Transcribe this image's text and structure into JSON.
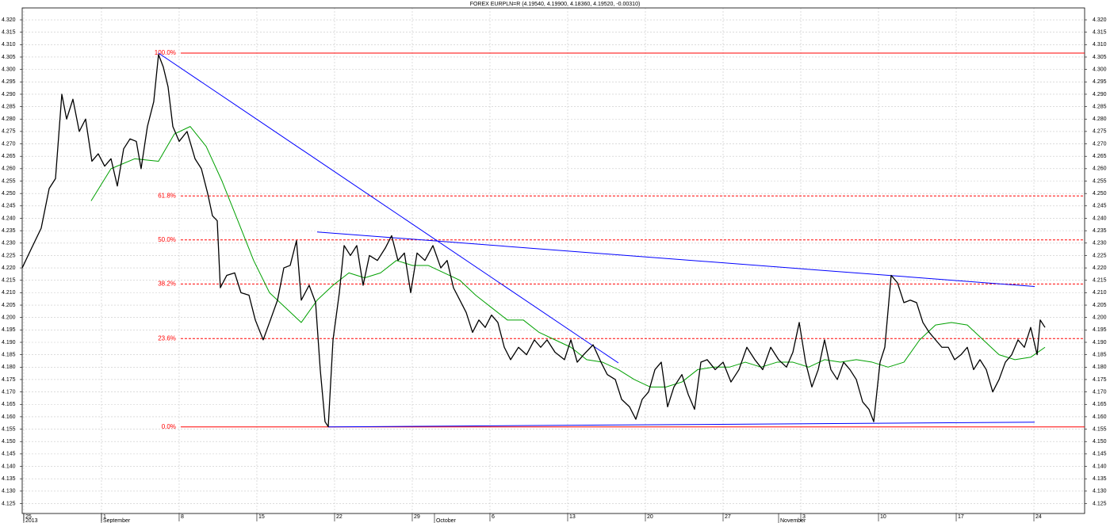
{
  "chart_data": {
    "type": "line",
    "title": "FOREX EURPLN=R (4.19540, 4.19900, 4.18360, 4.19520, -0.00310)",
    "xlim": [
      -0.14,
      95.57
    ],
    "ylim": [
      4.121,
      4.3248
    ],
    "grid": true,
    "xticks": [
      {
        "value": 0,
        "label": "25"
      },
      {
        "value": 7,
        "label": "1"
      },
      {
        "value": 14,
        "label": "8"
      },
      {
        "value": 21,
        "label": "15"
      },
      {
        "value": 28,
        "label": "22"
      },
      {
        "value": 35,
        "label": "29"
      },
      {
        "value": 42,
        "label": "6"
      },
      {
        "value": 49,
        "label": "13"
      },
      {
        "value": 56,
        "label": "20"
      },
      {
        "value": 63,
        "label": "27"
      },
      {
        "value": 70,
        "label": "3"
      },
      {
        "value": 77,
        "label": "10"
      },
      {
        "value": 84,
        "label": "17"
      },
      {
        "value": 91,
        "label": "24"
      }
    ],
    "month_labels": [
      {
        "value": 0,
        "label": "2013"
      },
      {
        "value": 7,
        "label": "September"
      },
      {
        "value": 37,
        "label": "October"
      },
      {
        "value": 68,
        "label": "November"
      }
    ],
    "yticks": [
      {
        "value": 4.125,
        "label": "4.125"
      },
      {
        "value": 4.13,
        "label": "4.130"
      },
      {
        "value": 4.135,
        "label": "4.135"
      },
      {
        "value": 4.14,
        "label": "4.140"
      },
      {
        "value": 4.145,
        "label": "4.145"
      },
      {
        "value": 4.15,
        "label": "4.150"
      },
      {
        "value": 4.155,
        "label": "4.155"
      },
      {
        "value": 4.16,
        "label": "4.160"
      },
      {
        "value": 4.165,
        "label": "4.165"
      },
      {
        "value": 4.17,
        "label": "4.170"
      },
      {
        "value": 4.175,
        "label": "4.175"
      },
      {
        "value": 4.18,
        "label": "4.180"
      },
      {
        "value": 4.185,
        "label": "4.185"
      },
      {
        "value": 4.19,
        "label": "4.190"
      },
      {
        "value": 4.195,
        "label": "4.195"
      },
      {
        "value": 4.2,
        "label": "4.200"
      },
      {
        "value": 4.205,
        "label": "4.205"
      },
      {
        "value": 4.21,
        "label": "4.210"
      },
      {
        "value": 4.215,
        "label": "4.215"
      },
      {
        "value": 4.22,
        "label": "4.220"
      },
      {
        "value": 4.225,
        "label": "4.225"
      },
      {
        "value": 4.23,
        "label": "4.230"
      },
      {
        "value": 4.235,
        "label": "4.235"
      },
      {
        "value": 4.24,
        "label": "4.240"
      },
      {
        "value": 4.245,
        "label": "4.245"
      },
      {
        "value": 4.25,
        "label": "4.250"
      },
      {
        "value": 4.255,
        "label": "4.255"
      },
      {
        "value": 4.26,
        "label": "4.260"
      },
      {
        "value": 4.265,
        "label": "4.265"
      },
      {
        "value": 4.27,
        "label": "4.270"
      },
      {
        "value": 4.275,
        "label": "4.275"
      },
      {
        "value": 4.28,
        "label": "4.280"
      },
      {
        "value": 4.285,
        "label": "4.285"
      },
      {
        "value": 4.29,
        "label": "4.290"
      },
      {
        "value": 4.295,
        "label": "4.295"
      },
      {
        "value": 4.3,
        "label": "4.300"
      },
      {
        "value": 4.305,
        "label": "4.305"
      },
      {
        "value": 4.31,
        "label": "4.310"
      },
      {
        "value": 4.315,
        "label": "4.315"
      },
      {
        "value": 4.32,
        "label": "4.320"
      }
    ],
    "fib_levels": [
      {
        "value": 4.3066,
        "label": "100.0%"
      },
      {
        "value": 4.249,
        "label": "61.8%"
      },
      {
        "value": 4.2313,
        "label": "50.0%"
      },
      {
        "value": 4.2135,
        "label": "38.2%"
      },
      {
        "value": 4.1915,
        "label": "23.6%"
      },
      {
        "value": 4.1559,
        "label": "0.0%"
      }
    ],
    "fib_color": "#ff0000",
    "fib_start": 14.14,
    "series": [
      {
        "color": "#000000",
        "x": [
          -0.14,
          0.71,
          1.57,
          2.29,
          2.86,
          3.43,
          3.86,
          4.43,
          5,
          5.57,
          6.14,
          6.71,
          7.29,
          7.86,
          8.43,
          9,
          9.57,
          10.14,
          10.57,
          11.14,
          11.71,
          12.14,
          12.57,
          13,
          13.43,
          14,
          14.71,
          15.43,
          16,
          16.57,
          17,
          17.43,
          17.71,
          18.29,
          19,
          19.57,
          20.29,
          20.86,
          21.57,
          22.14,
          22.86,
          23.43,
          24,
          24.57,
          25,
          25.71,
          26.29,
          26.71,
          27.14,
          27.43,
          27.86,
          28.43,
          28.86,
          29.43,
          30,
          30.57,
          31.14,
          31.86,
          32.57,
          33.14,
          33.71,
          34.29,
          34.86,
          35.43,
          36.14,
          36.86,
          37.57,
          38.14,
          38.71,
          39.29,
          39.86,
          40.43,
          41,
          41.57,
          42.14,
          42.71,
          43.29,
          43.86,
          44.57,
          45.29,
          46,
          46.57,
          47.14,
          47.86,
          48.71,
          49.29,
          49.86,
          50.43,
          51.29,
          52,
          52.57,
          53.29,
          53.86,
          54.57,
          55.14,
          55.71,
          56.29,
          56.86,
          57.43,
          58,
          58.57,
          59.29,
          59.86,
          60.43,
          61,
          61.57,
          62.29,
          63,
          63.71,
          64.43,
          65.14,
          65.86,
          66.57,
          67.29,
          68,
          68.71,
          69.29,
          69.86,
          70.43,
          71,
          71.57,
          72.14,
          72.71,
          73.29,
          73.86,
          74.43,
          75,
          75.57,
          76.14,
          76.57,
          77.14,
          77.57,
          78.14,
          78.71,
          79.29,
          79.86,
          80.43,
          81,
          81.57,
          82.14,
          82.71,
          83.29,
          83.86,
          84.43,
          85,
          85.57,
          86.14,
          86.71,
          87.29,
          87.86,
          88.43,
          89,
          89.57,
          90.14,
          90.71,
          91.29,
          91.57,
          92
        ],
        "values": [
          4.22,
          4.228,
          4.236,
          4.252,
          4.256,
          4.29,
          4.28,
          4.288,
          4.275,
          4.28,
          4.263,
          4.266,
          4.261,
          4.264,
          4.253,
          4.268,
          4.272,
          4.271,
          4.26,
          4.277,
          4.287,
          4.306,
          4.301,
          4.293,
          4.277,
          4.271,
          4.275,
          4.264,
          4.26,
          4.25,
          4.241,
          4.239,
          4.212,
          4.217,
          4.218,
          4.21,
          4.209,
          4.199,
          4.191,
          4.198,
          4.207,
          4.22,
          4.221,
          4.231,
          4.207,
          4.213,
          4.206,
          4.179,
          4.158,
          4.156,
          4.191,
          4.21,
          4.229,
          4.225,
          4.229,
          4.213,
          4.225,
          4.223,
          4.228,
          4.233,
          4.223,
          4.226,
          4.21,
          4.226,
          4.223,
          4.229,
          4.22,
          4.223,
          4.212,
          4.207,
          4.202,
          4.194,
          4.199,
          4.196,
          4.201,
          4.198,
          4.188,
          4.183,
          4.188,
          4.185,
          4.191,
          4.188,
          4.191,
          4.186,
          4.183,
          4.191,
          4.182,
          4.185,
          4.189,
          4.182,
          4.177,
          4.175,
          4.167,
          4.164,
          4.159,
          4.167,
          4.17,
          4.179,
          4.182,
          4.164,
          4.172,
          4.177,
          4.169,
          4.163,
          4.182,
          4.183,
          4.179,
          4.182,
          4.174,
          4.179,
          4.188,
          4.183,
          4.179,
          4.188,
          4.183,
          4.18,
          4.186,
          4.198,
          4.182,
          4.172,
          4.179,
          4.191,
          4.179,
          4.175,
          4.182,
          4.179,
          4.175,
          4.166,
          4.163,
          4.158,
          4.182,
          4.188,
          4.217,
          4.214,
          4.206,
          4.207,
          4.206,
          4.198,
          4.194,
          4.191,
          4.188,
          4.188,
          4.183,
          4.185,
          4.188,
          4.179,
          4.183,
          4.179,
          4.17,
          4.175,
          4.182,
          4.185,
          4.191,
          4.188,
          4.196,
          4.185,
          4.199,
          4.196
        ]
      },
      {
        "color": "#00a000",
        "x": [
          6.07,
          7.86,
          10,
          12.14,
          13.57,
          15,
          16.43,
          17.86,
          19.29,
          20.71,
          22.14,
          23.57,
          25,
          26.43,
          27.86,
          29.29,
          30.71,
          32.14,
          33.57,
          35,
          36.43,
          37.86,
          39.29,
          40.71,
          42.14,
          43.57,
          45,
          46.43,
          47.86,
          49.29,
          50.71,
          52.14,
          53.57,
          55,
          56.43,
          57.86,
          59.29,
          60.71,
          62.14,
          63.57,
          65,
          66.43,
          67.86,
          69.29,
          70.71,
          72.14,
          73.57,
          75,
          76.43,
          77.86,
          79.29,
          80.71,
          82.14,
          83.57,
          85,
          86.43,
          87.86,
          89.29,
          90.71,
          92
        ],
        "values": [
          4.247,
          4.26,
          4.264,
          4.263,
          4.274,
          4.277,
          4.269,
          4.255,
          4.239,
          4.223,
          4.21,
          4.204,
          4.198,
          4.207,
          4.213,
          4.218,
          4.216,
          4.218,
          4.223,
          4.221,
          4.221,
          4.218,
          4.215,
          4.209,
          4.204,
          4.199,
          4.199,
          4.194,
          4.191,
          4.188,
          4.183,
          4.182,
          4.179,
          4.175,
          4.172,
          4.172,
          4.174,
          4.179,
          4.18,
          4.18,
          4.182,
          4.18,
          4.182,
          4.182,
          4.18,
          4.183,
          4.182,
          4.183,
          4.182,
          4.18,
          4.182,
          4.191,
          4.197,
          4.198,
          4.197,
          4.191,
          4.185,
          4.183,
          4.184,
          4.188
        ]
      }
    ],
    "trendlines": [
      {
        "color": "#0000ff",
        "x": [
          12.14,
          53.57
        ],
        "values": [
          4.3066,
          4.1817
        ]
      },
      {
        "color": "#0000ff",
        "x": [
          26.43,
          91.07
        ],
        "values": [
          4.2345,
          4.2125
        ]
      },
      {
        "color": "#0000ff",
        "x": [
          27.43,
          91.07
        ],
        "values": [
          4.1559,
          4.1578
        ]
      }
    ]
  }
}
